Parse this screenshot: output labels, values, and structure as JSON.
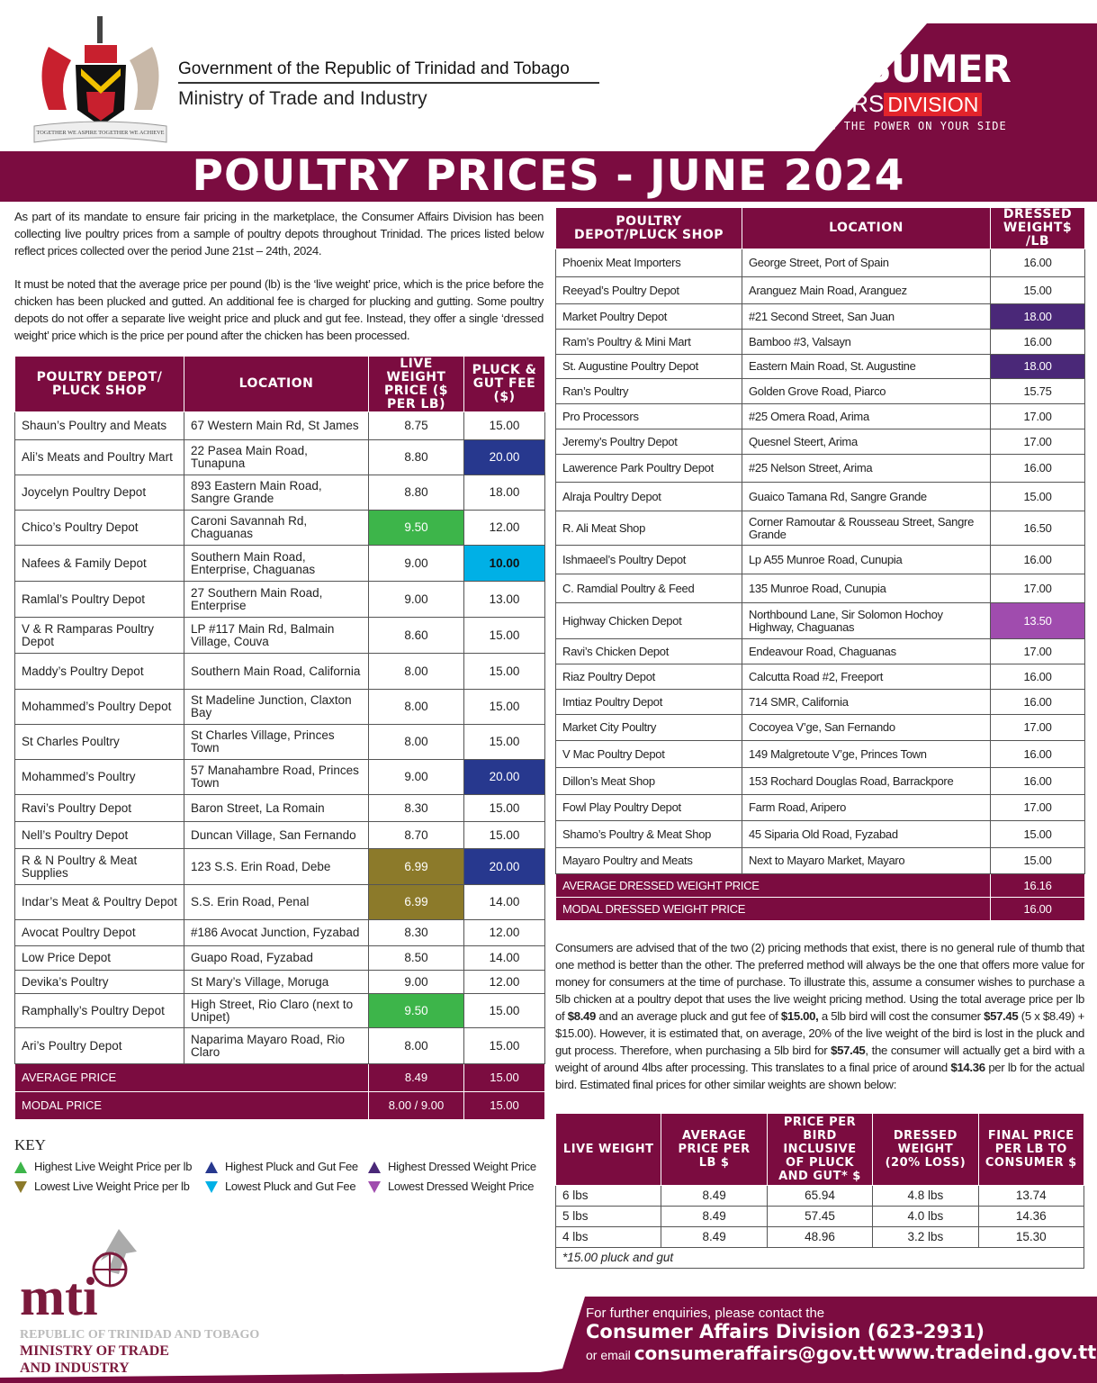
{
  "header": {
    "gov_line1": "Government of the Republic of Trinidad and Tobago",
    "gov_line2": "Ministry of Trade and Industry",
    "coat_of_arms_motto": "TOGETHER WE ASPIRE TOGETHER WE ACHIEVE",
    "ca_logo": {
      "line1": "CONSUMER",
      "affairs": "AFFAIRS",
      "division": "DIVISION",
      "tagline": "PUTTING THE POWER ON YOUR SIDE"
    },
    "title": "POULTRY PRICES - JUNE 2024"
  },
  "colors": {
    "brand": "#7b0c40",
    "high_live": "#3db54a",
    "low_live": "#8c7a2a",
    "high_fee": "#27388e",
    "low_fee": "#00b0e6",
    "high_dressed": "#4a2878",
    "low_dressed": "#a04cae"
  },
  "intro": {
    "p1": "As part of its mandate to ensure fair pricing in the marketplace, the Consumer Affairs Division has been collecting live poultry prices from a sample of poultry depots throughout Trinidad. The prices listed below reflect prices collected over the period June 21st – 24th, 2024.",
    "p2": "It must be noted that the average price per pound (lb) is the ‘live weight’ price, which is the price before the chicken has been plucked and gutted. An additional fee is charged for plucking and gutting. Some poultry depots do not offer a separate live weight price and pluck and gut fee. Instead, they offer a single ‘dressed weight’ price which is the price per pound after the chicken has been processed."
  },
  "live_table": {
    "headers": [
      "POULTRY DEPOT/ PLUCK SHOP",
      "LOCATION",
      "LIVE WEIGHT PRICE ($ PER LB)",
      "PLUCK & GUT FEE ($)"
    ],
    "rows": [
      {
        "shop": "Shaun’s Poultry and Meats",
        "location": "67 Western Main Rd, St James",
        "price": "8.75",
        "fee": "15.00"
      },
      {
        "shop": "Ali’s Meats and Poultry Mart",
        "location": "22 Pasea Main Road, Tunapuna",
        "price": "8.80",
        "fee": "20.00",
        "fee_hl": "high-fee"
      },
      {
        "shop": "Joycelyn Poultry Depot",
        "location": "893 Eastern Main Road, Sangre Grande",
        "price": "8.80",
        "fee": "18.00"
      },
      {
        "shop": "Chico’s Poultry Depot",
        "location": "Caroni Savannah Rd, Chaguanas",
        "price": "9.50",
        "fee": "12.00",
        "price_hl": "high-live"
      },
      {
        "shop": "Nafees & Family Depot",
        "location": "Southern Main Road, Enterprise, Chaguanas",
        "price": "9.00",
        "fee": "10.00",
        "fee_hl": "low-fee"
      },
      {
        "shop": "Ramlal’s Poultry Depot",
        "location": "27 Southern Main Road, Enterprise",
        "price": "9.00",
        "fee": "13.00"
      },
      {
        "shop": "V & R Ramparas Poultry Depot",
        "location": "LP #117 Main Rd, Balmain Village, Couva",
        "price": "8.60",
        "fee": "15.00"
      },
      {
        "shop": "Maddy’s Poultry Depot",
        "location": "Southern Main Road, California",
        "price": "8.00",
        "fee": "15.00"
      },
      {
        "shop": "Mohammed’s Poultry Depot",
        "location": "St Madeline Junction, Claxton Bay",
        "price": "8.00",
        "fee": "15.00"
      },
      {
        "shop": "St Charles Poultry",
        "location": "St Charles Village, Princes Town",
        "price": "8.00",
        "fee": "15.00"
      },
      {
        "shop": "Mohammed’s Poultry",
        "location": "57 Manahambre Road, Princes Town",
        "price": "9.00",
        "fee": "20.00",
        "fee_hl": "high-fee"
      },
      {
        "shop": "Ravi’s Poultry Depot",
        "location": "Baron Street, La Romain",
        "price": "8.30",
        "fee": "15.00"
      },
      {
        "shop": "Nell’s Poultry Depot",
        "location": "Duncan Village, San Fernando",
        "price": "8.70",
        "fee": "15.00"
      },
      {
        "shop": "R & N Poultry & Meat Supplies",
        "location": "123 S.S. Erin Road, Debe",
        "price": "6.99",
        "fee": "20.00",
        "price_hl": "low-live",
        "fee_hl": "high-fee"
      },
      {
        "shop": "Indar’s Meat & Poultry Depot",
        "location": "S.S. Erin Road, Penal",
        "price": "6.99",
        "fee": "14.00",
        "price_hl": "low-live"
      },
      {
        "shop": "Avocat Poultry Depot",
        "location": "#186 Avocat Junction, Fyzabad",
        "price": "8.30",
        "fee": "12.00"
      },
      {
        "shop": "Low Price Depot",
        "location": "Guapo Road, Fyzabad",
        "price": "8.50",
        "fee": "14.00"
      },
      {
        "shop": "Devika’s Poultry",
        "location": "St Mary’s Village, Moruga",
        "price": "9.00",
        "fee": "12.00"
      },
      {
        "shop": "Ramphally’s Poultry Depot",
        "location": "High Street, Rio Claro (next to Unipet)",
        "price": "9.50",
        "fee": "15.00",
        "price_hl": "high-live"
      },
      {
        "shop": "Ari’s Poultry Depot",
        "location": "Naparima Mayaro Road, Rio Claro",
        "price": "8.00",
        "fee": "15.00"
      }
    ],
    "summary": [
      {
        "label": "AVERAGE PRICE",
        "price": "8.49",
        "fee": "15.00"
      },
      {
        "label": "MODAL PRICE",
        "price": "8.00 / 9.00",
        "fee": "15.00"
      }
    ]
  },
  "dressed_table": {
    "headers": [
      "POULTRY DEPOT/PLUCK SHOP",
      "LOCATION",
      "DRESSED WEIGHT$ /LB"
    ],
    "rows": [
      {
        "shop": "Phoenix Meat Importers",
        "location": "George Street, Port of Spain",
        "price": "16.00"
      },
      {
        "shop": "Reeyad’s Poultry Depot",
        "location": "Aranguez Main Road, Aranguez",
        "price": "15.00"
      },
      {
        "shop": "Market Poultry Depot",
        "location": "#21 Second Street, San Juan",
        "price": "18.00",
        "hl": "high-dressed"
      },
      {
        "shop": "Ram’s Poultry & Mini Mart",
        "location": "Bamboo #3, Valsayn",
        "price": "16.00"
      },
      {
        "shop": "St. Augustine Poultry Depot",
        "location": "Eastern Main Road, St. Augustine",
        "price": "18.00",
        "hl": "high-dressed"
      },
      {
        "shop": "Ran’s Poultry",
        "location": "Golden Grove Road, Piarco",
        "price": "15.75"
      },
      {
        "shop": "Pro Processors",
        "location": "#25 Omera Road, Arima",
        "price": "17.00"
      },
      {
        "shop": "Jeremy’s Poultry Depot",
        "location": "Quesnel Steert, Arima",
        "price": "17.00"
      },
      {
        "shop": "Lawerence Park Poultry Depot",
        "location": "#25 Nelson Street, Arima",
        "price": "16.00"
      },
      {
        "shop": "Alraja Poultry Depot",
        "location": "Guaico Tamana Rd, Sangre Grande",
        "price": "15.00"
      },
      {
        "shop": "R. Ali Meat Shop",
        "location": "Corner Ramoutar & Rousseau Street, Sangre Grande",
        "price": "16.50"
      },
      {
        "shop": "Ishmaeel’s Poultry Depot",
        "location": "Lp A55 Munroe Road, Cunupia",
        "price": "16.00"
      },
      {
        "shop": "C. Ramdial Poultry & Feed",
        "location": "135 Munroe Road, Cunupia",
        "price": "17.00"
      },
      {
        "shop": "Highway Chicken Depot",
        "location": "Northbound Lane, Sir Solomon Hochoy Highway, Chaguanas",
        "price": "13.50",
        "hl": "low-dressed"
      },
      {
        "shop": "Ravi’s Chicken Depot",
        "location": "Endeavour Road, Chaguanas",
        "price": "17.00"
      },
      {
        "shop": "Riaz Poultry Depot",
        "location": "Calcutta Road #2, Freeport",
        "price": "16.00"
      },
      {
        "shop": "Imtiaz Poultry Depot",
        "location": "714 SMR, California",
        "price": "16.00"
      },
      {
        "shop": "Market City Poultry",
        "location": "Cocoyea V’ge, San Fernando",
        "price": "17.00"
      },
      {
        "shop": "V Mac Poultry Depot",
        "location": "149 Malgretoute V’ge, Princes Town",
        "price": "16.00"
      },
      {
        "shop": "Dillon’s Meat Shop",
        "location": "153 Rochard Douglas Road, Barrackpore",
        "price": "16.00"
      },
      {
        "shop": "Fowl Play Poultry Depot",
        "location": "Farm Road, Aripero",
        "price": "17.00"
      },
      {
        "shop": "Shamo’s Poultry & Meat Shop",
        "location": "45 Siparia Old Road, Fyzabad",
        "price": "15.00"
      },
      {
        "shop": "Mayaro Poultry and Meats",
        "location": "Next to Mayaro Market, Mayaro",
        "price": "15.00"
      }
    ],
    "summary": [
      {
        "label": "AVERAGE DRESSED WEIGHT PRICE",
        "price": "16.16"
      },
      {
        "label": "MODAL DRESSED WEIGHT PRICE",
        "price": "16.00"
      }
    ]
  },
  "key": {
    "title": "KEY",
    "items": [
      {
        "label": "Highest Live Weight Price per lb",
        "color": "#3db54a",
        "dir": "up"
      },
      {
        "label": "Highest Pluck and Gut Fee",
        "color": "#27388e",
        "dir": "up"
      },
      {
        "label": "Highest Dressed Weight Price",
        "color": "#4a2878",
        "dir": "up"
      },
      {
        "label": "Lowest Live Weight Price per lb",
        "color": "#8c7a2a",
        "dir": "down"
      },
      {
        "label": "Lowest Pluck and Gut Fee",
        "color": "#00b0e6",
        "dir": "down"
      },
      {
        "label": "Lowest Dressed Weight Price",
        "color": "#a04cae",
        "dir": "down"
      }
    ]
  },
  "advice": {
    "parts": [
      "Consumers are advised that of the two (2) pricing methods that exist, there is no general rule of thumb that one method is better than the other. The preferred method will always be the one that offers more value for money for consumers at the time of purchase. To illustrate this, assume a consumer wishes to purchase a 5lb chicken at a poultry depot that uses the live weight pricing method. Using the total average price per lb of ",
      "$8.49",
      " and an average pluck and gut fee of ",
      "$15.00,",
      " a 5lb bird will cost the consumer ",
      "$57.45",
      " (5 x $8.49) + $15.00). However, it is estimated that, on average, 20% of the live weight of the bird is lost in the pluck and gut process. Therefore, when purchasing a 5lb bird for ",
      "$57.45",
      ", the consumer will actually get a bird with a weight of around 4lbs after processing. This translates to a final price of around ",
      "$14.36",
      " per lb for the actual bird. Estimated final prices for other similar weights are shown below:"
    ]
  },
  "estimate_table": {
    "headers": [
      "LIVE WEIGHT",
      "AVERAGE PRICE PER LB $",
      "PRICE PER BIRD INCLUSIVE OF PLUCK AND GUT* $",
      "DRESSED WEIGHT (20% LOSS)",
      "FINAL PRICE PER LB TO CONSUMER $"
    ],
    "rows": [
      [
        "6 lbs",
        "8.49",
        "65.94",
        "4.8 lbs",
        "13.74"
      ],
      [
        "5 lbs",
        "8.49",
        "57.45",
        "4.0 lbs",
        "14.36"
      ],
      [
        "4 lbs",
        "8.49",
        "48.96",
        "3.2 lbs",
        "15.30"
      ]
    ],
    "note": "*15.00 pluck and gut"
  },
  "mti_logo": {
    "mark": "mti",
    "line1": "REPUBLIC OF TRINIDAD AND TOBAGO",
    "line2": "MINISTRY OF TRADE",
    "line3": "AND INDUSTRY"
  },
  "footer": {
    "line1": "For further enquiries, please contact the",
    "line2": "Consumer Affairs Division (623-2931)",
    "email_prefix": "or email ",
    "email": "consumeraffairs@gov.tt",
    "website": "www.tradeind.gov.tt"
  }
}
